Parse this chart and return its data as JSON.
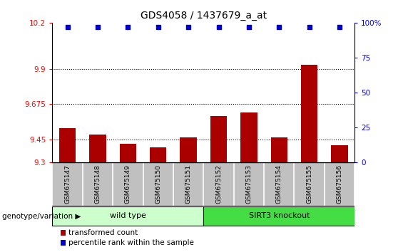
{
  "title": "GDS4058 / 1437679_a_at",
  "samples": [
    "GSM675147",
    "GSM675148",
    "GSM675149",
    "GSM675150",
    "GSM675151",
    "GSM675152",
    "GSM675153",
    "GSM675154",
    "GSM675155",
    "GSM675156"
  ],
  "transformed_count": [
    9.52,
    9.48,
    9.42,
    9.4,
    9.46,
    9.6,
    9.62,
    9.46,
    9.93,
    9.41
  ],
  "percentile_rank": [
    97,
    97,
    97,
    97,
    97,
    97,
    97,
    97,
    97,
    97
  ],
  "groups": [
    {
      "label": "wild type",
      "indices": [
        0,
        1,
        2,
        3,
        4
      ],
      "color": "#CCFFCC"
    },
    {
      "label": "SIRT3 knockout",
      "indices": [
        5,
        6,
        7,
        8,
        9
      ],
      "color": "#44DD44"
    }
  ],
  "ylim_left": [
    9.3,
    10.2
  ],
  "ylim_right": [
    0,
    100
  ],
  "yticks_left": [
    9.3,
    9.45,
    9.675,
    9.9,
    10.2
  ],
  "yticks_right": [
    0,
    25,
    50,
    75,
    100
  ],
  "ytick_labels_left": [
    "9.3",
    "9.45",
    "9.675",
    "9.9",
    "10.2"
  ],
  "ytick_labels_right": [
    "0",
    "25",
    "50",
    "75",
    "100%"
  ],
  "hlines": [
    9.45,
    9.675,
    9.9
  ],
  "bar_color": "#AA0000",
  "dot_color": "#0000CC",
  "bar_width": 0.55,
  "legend_bar_label": "transformed count",
  "legend_dot_label": "percentile rank within the sample",
  "genotype_label": "genotype/variation",
  "background_color": "#ffffff",
  "xlab_bg": "#C0C0C0",
  "xlim": [
    -0.5,
    9.5
  ]
}
